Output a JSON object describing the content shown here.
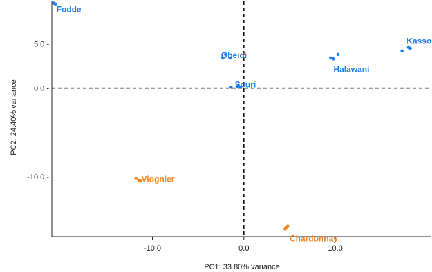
{
  "chart_data": {
    "type": "scatter",
    "title": "",
    "xlabel": "PC1: 33.80% variance",
    "ylabel": "PC2: 24.40% variance",
    "xlim": [
      -21.0,
      20.5
    ],
    "ylim": [
      -16.8,
      9.8
    ],
    "xticks": [
      -10.0,
      0.0,
      10.0
    ],
    "xtick_labels": [
      "-10.0",
      "0.0",
      "10.0"
    ],
    "yticks": [
      5.0,
      0.0,
      -10.0
    ],
    "ytick_labels": [
      "5.0 -",
      "0.0 -",
      "-10.0 -"
    ],
    "reference_lines": [
      {
        "axis": "x",
        "value": 0.0,
        "style": "dashed"
      },
      {
        "axis": "y",
        "value": 0.0,
        "style": "dashed"
      }
    ],
    "grid": false,
    "legend": "none",
    "groups": [
      {
        "name": "Fodde",
        "color": "#1a7ff0",
        "points": [
          [
            -20.8,
            9.6
          ],
          [
            -20.6,
            9.5
          ]
        ]
      },
      {
        "name": "Obeidi",
        "color": "#1a7ff0",
        "points": [
          [
            -2.3,
            3.4
          ],
          [
            -2.0,
            3.8
          ],
          [
            -1.5,
            3.4
          ]
        ]
      },
      {
        "name": "Souri",
        "color": "#1a7ff0",
        "points": [
          [
            -1.4,
            0.1
          ],
          [
            -0.7,
            0.2
          ],
          [
            -0.4,
            0.1
          ]
        ]
      },
      {
        "name": "Halawani",
        "color": "#1a7ff0",
        "points": [
          [
            9.5,
            3.4
          ],
          [
            9.8,
            3.3
          ],
          [
            10.3,
            3.8
          ]
        ]
      },
      {
        "name": "Kassoufi",
        "color": "#1a7ff0",
        "points": [
          [
            17.3,
            4.2
          ],
          [
            18.0,
            4.6
          ],
          [
            18.2,
            4.5
          ]
        ]
      },
      {
        "name": "Viognier",
        "color": "#f5841f",
        "points": [
          [
            -11.8,
            -10.2
          ],
          [
            -11.5,
            -10.4
          ],
          [
            -11.3,
            -10.5
          ]
        ]
      },
      {
        "name": "Chardonnay",
        "color": "#f5841f",
        "points": [
          [
            4.5,
            -15.9
          ],
          [
            4.6,
            -15.8
          ],
          [
            4.8,
            -15.6
          ]
        ]
      }
    ],
    "labels": [
      {
        "text": "Fodde",
        "color": "#1a7ff0",
        "x": -20.5,
        "y": 8.9
      },
      {
        "text": "Obeidi",
        "color": "#1a7ff0",
        "x": -2.5,
        "y": 3.7
      },
      {
        "text": "Souri",
        "color": "#1a7ff0",
        "x": -1.0,
        "y": 0.4
      },
      {
        "text": "Halawani",
        "color": "#1a7ff0",
        "x": 9.8,
        "y": 2.1
      },
      {
        "text": "Kassoufi",
        "color": "#1a7ff0",
        "x": 17.8,
        "y": 5.3
      },
      {
        "text": "Viognier",
        "color": "#f5841f",
        "x": -11.2,
        "y": -10.3
      },
      {
        "text": "Chardonnay",
        "color": "#f5841f",
        "x": 5.0,
        "y": -17.0
      }
    ]
  }
}
